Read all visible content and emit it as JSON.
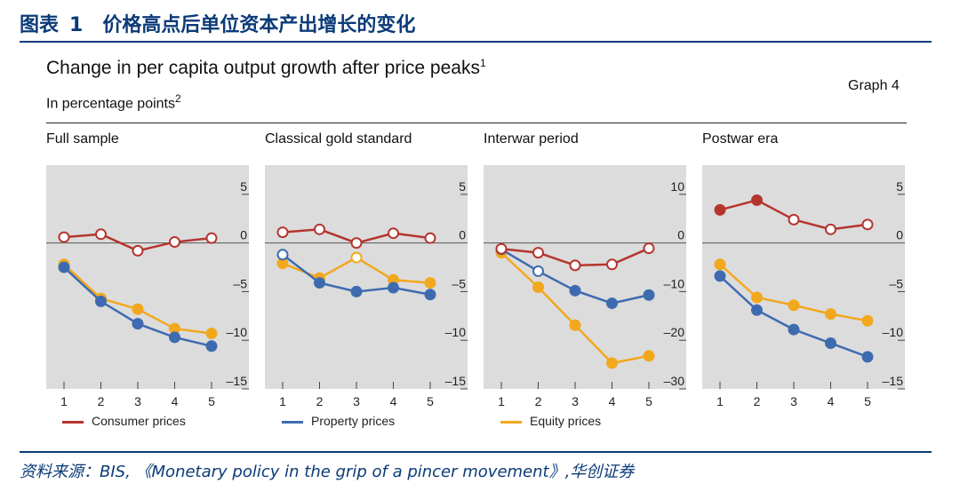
{
  "header": {
    "label": "图表",
    "number": "1",
    "text": "价格高点后单位资本产出增长的变化"
  },
  "title": {
    "text": "Change in per capita output growth after price peaks",
    "sup": "1"
  },
  "subtitle": {
    "text": "In percentage points",
    "sup": "2"
  },
  "graph_no": "Graph 4",
  "legend": [
    {
      "label": "Consumer prices",
      "color": "#b5352e"
    },
    {
      "label": "Property prices",
      "color": "#3e6bb0"
    },
    {
      "label": "Equity prices",
      "color": "#f2a81d"
    }
  ],
  "source": "资料来源：BIS, 《Monetary policy in the grip of a pincer movement》,华创证券",
  "chart_data": [
    {
      "type": "line",
      "title": "Full sample",
      "x": [
        1,
        2,
        3,
        4,
        5
      ],
      "x_tick_labels": [
        "1",
        "2",
        "3",
        "4",
        "5"
      ],
      "ylim": [
        -15,
        8
      ],
      "y_ticks": [
        5,
        0,
        -5,
        -10,
        -15
      ],
      "y_tick_labels": [
        "5",
        "0",
        "–5",
        "–10",
        "–15"
      ],
      "series": [
        {
          "name": "Consumer prices",
          "values": [
            0.6,
            0.9,
            -0.8,
            0.1,
            0.5
          ],
          "hollow": [
            true,
            true,
            true,
            true,
            true
          ]
        },
        {
          "name": "Property prices",
          "values": [
            -2.5,
            -6.0,
            -8.3,
            -9.7,
            -10.6
          ],
          "hollow": [
            false,
            false,
            false,
            false,
            false
          ]
        },
        {
          "name": "Equity prices",
          "values": [
            -2.2,
            -5.7,
            -6.8,
            -8.8,
            -9.3
          ],
          "hollow": [
            false,
            false,
            false,
            false,
            false
          ]
        }
      ]
    },
    {
      "type": "line",
      "title": "Classical gold standard",
      "x": [
        1,
        2,
        3,
        4,
        5
      ],
      "x_tick_labels": [
        "1",
        "2",
        "3",
        "4",
        "5"
      ],
      "ylim": [
        -15,
        8
      ],
      "y_ticks": [
        5,
        0,
        -5,
        -10,
        -15
      ],
      "y_tick_labels": [
        "5",
        "0",
        "–5",
        "–10",
        "–15"
      ],
      "series": [
        {
          "name": "Consumer prices",
          "values": [
            1.1,
            1.4,
            0.0,
            1.0,
            0.5
          ],
          "hollow": [
            true,
            true,
            true,
            true,
            true
          ]
        },
        {
          "name": "Property prices",
          "values": [
            -1.2,
            -4.1,
            -5.0,
            -4.6,
            -5.3
          ],
          "hollow": [
            true,
            false,
            false,
            false,
            false
          ]
        },
        {
          "name": "Equity prices",
          "values": [
            -2.1,
            -3.6,
            -1.5,
            -3.8,
            -4.1
          ],
          "hollow": [
            false,
            false,
            true,
            false,
            false
          ]
        }
      ]
    },
    {
      "type": "line",
      "title": "Interwar period",
      "x": [
        1,
        2,
        3,
        4,
        5
      ],
      "x_tick_labels": [
        "1",
        "2",
        "3",
        "4",
        "5"
      ],
      "ylim": [
        -30,
        16
      ],
      "y_ticks": [
        10,
        0,
        -10,
        -20,
        -30
      ],
      "y_tick_labels": [
        "10",
        "0",
        "–10",
        "–20",
        "–30"
      ],
      "series": [
        {
          "name": "Consumer prices",
          "values": [
            -1.2,
            -2.0,
            -4.6,
            -4.4,
            -1.1
          ],
          "hollow": [
            true,
            true,
            true,
            true,
            true
          ]
        },
        {
          "name": "Property prices",
          "values": [
            -1.3,
            -5.8,
            -9.8,
            -12.4,
            -10.7
          ],
          "hollow": [
            true,
            true,
            false,
            false,
            false
          ]
        },
        {
          "name": "Equity prices",
          "values": [
            -2.0,
            -9.1,
            -16.9,
            -24.7,
            -23.2
          ],
          "hollow": [
            false,
            false,
            false,
            false,
            false
          ]
        }
      ]
    },
    {
      "type": "line",
      "title": "Postwar era",
      "x": [
        1,
        2,
        3,
        4,
        5
      ],
      "x_tick_labels": [
        "1",
        "2",
        "3",
        "4",
        "5"
      ],
      "ylim": [
        -15,
        8
      ],
      "y_ticks": [
        5,
        0,
        -5,
        -10,
        -15
      ],
      "y_tick_labels": [
        "5",
        "0",
        "–5",
        "–10",
        "–15"
      ],
      "series": [
        {
          "name": "Consumer prices",
          "values": [
            3.4,
            4.4,
            2.4,
            1.4,
            1.9
          ],
          "hollow": [
            false,
            false,
            true,
            true,
            true
          ]
        },
        {
          "name": "Property prices",
          "values": [
            -3.4,
            -6.9,
            -8.9,
            -10.3,
            -11.7
          ],
          "hollow": [
            false,
            false,
            false,
            false,
            false
          ]
        },
        {
          "name": "Equity prices",
          "values": [
            -2.2,
            -5.6,
            -6.4,
            -7.3,
            -8.0
          ],
          "hollow": [
            false,
            false,
            false,
            false,
            false
          ]
        }
      ]
    }
  ]
}
